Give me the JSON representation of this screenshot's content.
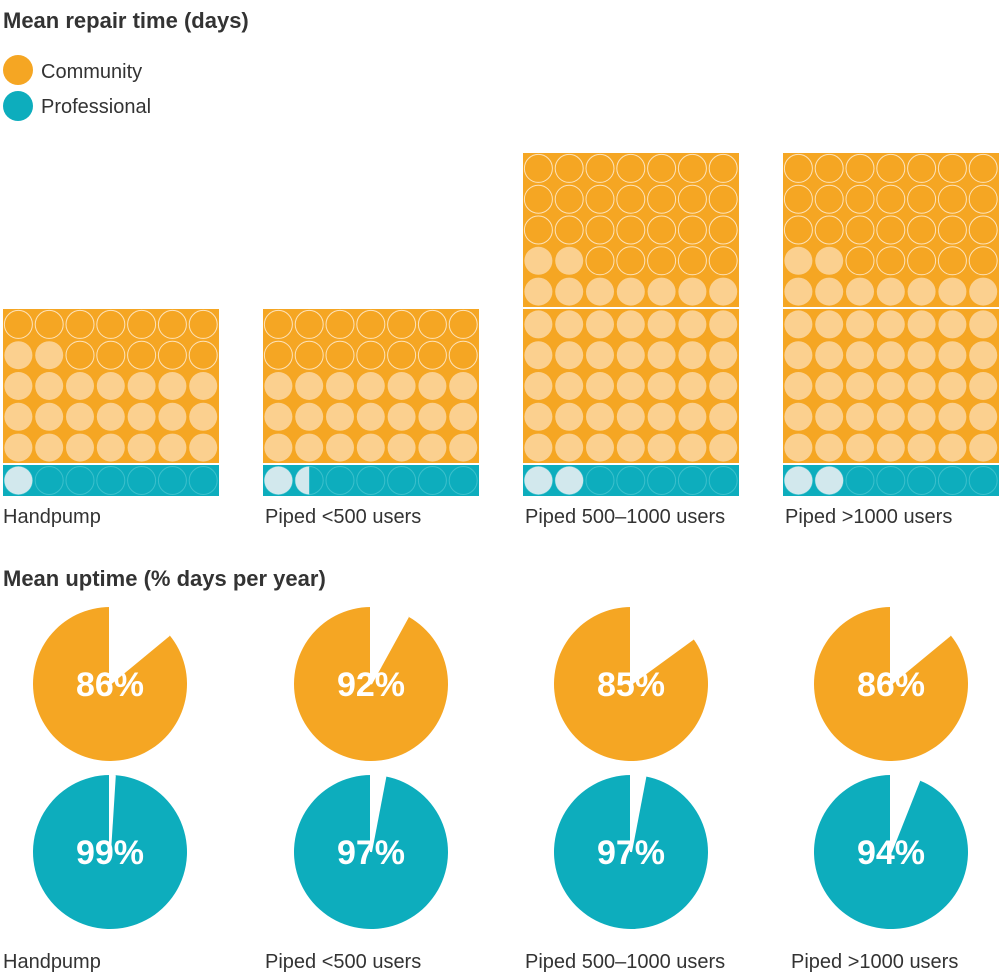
{
  "colors": {
    "community": "#f5a623",
    "professional": "#0dadbd",
    "community_light": "#fbd08f",
    "professional_light": "#d2e8ed",
    "cell_outline": "#fde2b8"
  },
  "legend": [
    {
      "label": "Community",
      "color": "#f5a623"
    },
    {
      "label": "Professional",
      "color": "#0dadbd"
    }
  ],
  "chart_data": [
    {
      "type": "pictogram",
      "title": "Mean repair time (days)",
      "unit": "days",
      "categories": [
        "Handpump",
        "Piped <500 users",
        "Piped 500–1000 users",
        "Piped >1000 users"
      ],
      "series": [
        {
          "name": "Community",
          "values": [
            23,
            21,
            44,
            44
          ]
        },
        {
          "name": "Professional",
          "values": [
            1,
            1.5,
            2,
            2
          ]
        }
      ]
    },
    {
      "type": "pie",
      "title": "Mean uptime (% days per year)",
      "unit": "%",
      "categories": [
        "Handpump",
        "Piped <500 users",
        "Piped 500–1000 users",
        "Piped >1000 users"
      ],
      "series": [
        {
          "name": "Community",
          "values": [
            86,
            92,
            85,
            86
          ],
          "labels": [
            "86%",
            "92%",
            "85%",
            "86%"
          ]
        },
        {
          "name": "Professional",
          "values": [
            99,
            97,
            97,
            94
          ],
          "labels": [
            "99%",
            "97%",
            "97%",
            "94%"
          ]
        }
      ]
    }
  ]
}
